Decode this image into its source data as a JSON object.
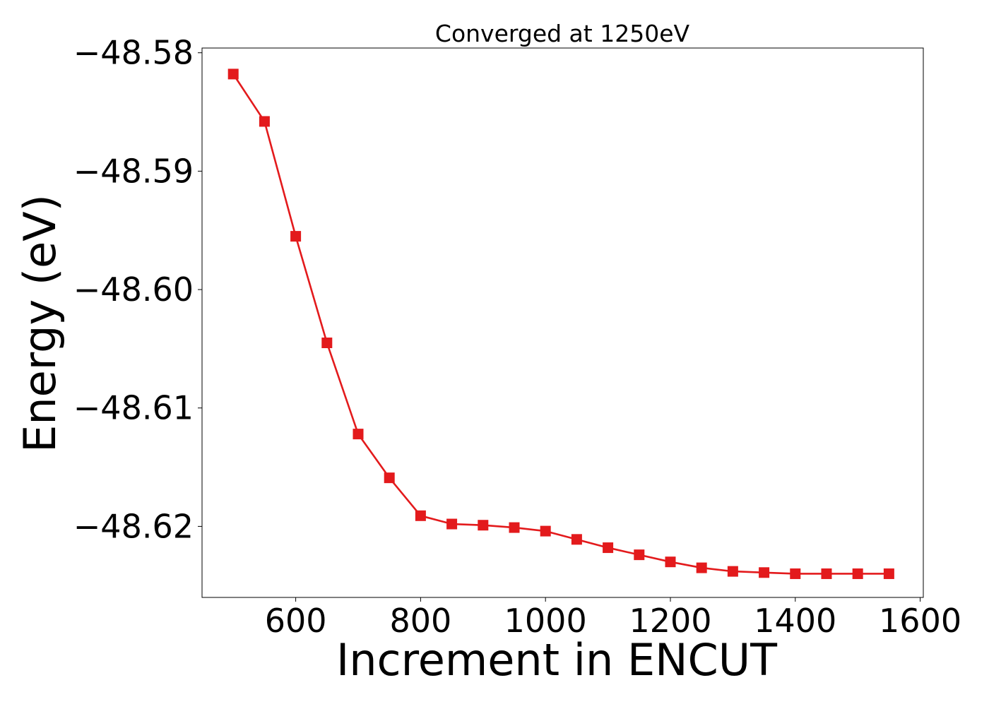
{
  "chart_data": {
    "type": "line",
    "title": "Converged at 1250eV",
    "xlabel": "Increment in ENCUT",
    "ylabel": "Energy (eV)",
    "xlim": [
      450,
      1605
    ],
    "ylim": [
      -48.626,
      -48.5796
    ],
    "x_ticks": [
      600,
      800,
      1000,
      1200,
      1400,
      1600
    ],
    "x_tick_labels": [
      "600",
      "800",
      "1000",
      "1200",
      "1400",
      "1600"
    ],
    "y_ticks": [
      -48.58,
      -48.59,
      -48.6,
      -48.61,
      -48.62
    ],
    "y_tick_labels": [
      "−48.58",
      "−48.59",
      "−48.60",
      "−48.61",
      "−48.62"
    ],
    "grid": false,
    "series": [
      {
        "color": "#e31a1c",
        "marker": "square",
        "x": [
          500,
          550,
          600,
          650,
          700,
          750,
          800,
          850,
          900,
          950,
          1000,
          1050,
          1100,
          1150,
          1200,
          1250,
          1300,
          1350,
          1400,
          1450,
          1500,
          1550
        ],
        "y": [
          -48.5818,
          -48.5858,
          -48.5955,
          -48.6045,
          -48.6122,
          -48.6159,
          -48.6191,
          -48.6198,
          -48.6199,
          -48.6201,
          -48.6204,
          -48.6211,
          -48.6218,
          -48.6224,
          -48.623,
          -48.6235,
          -48.6238,
          -48.6239,
          -48.624,
          -48.624,
          -48.624,
          -48.624
        ]
      }
    ]
  }
}
